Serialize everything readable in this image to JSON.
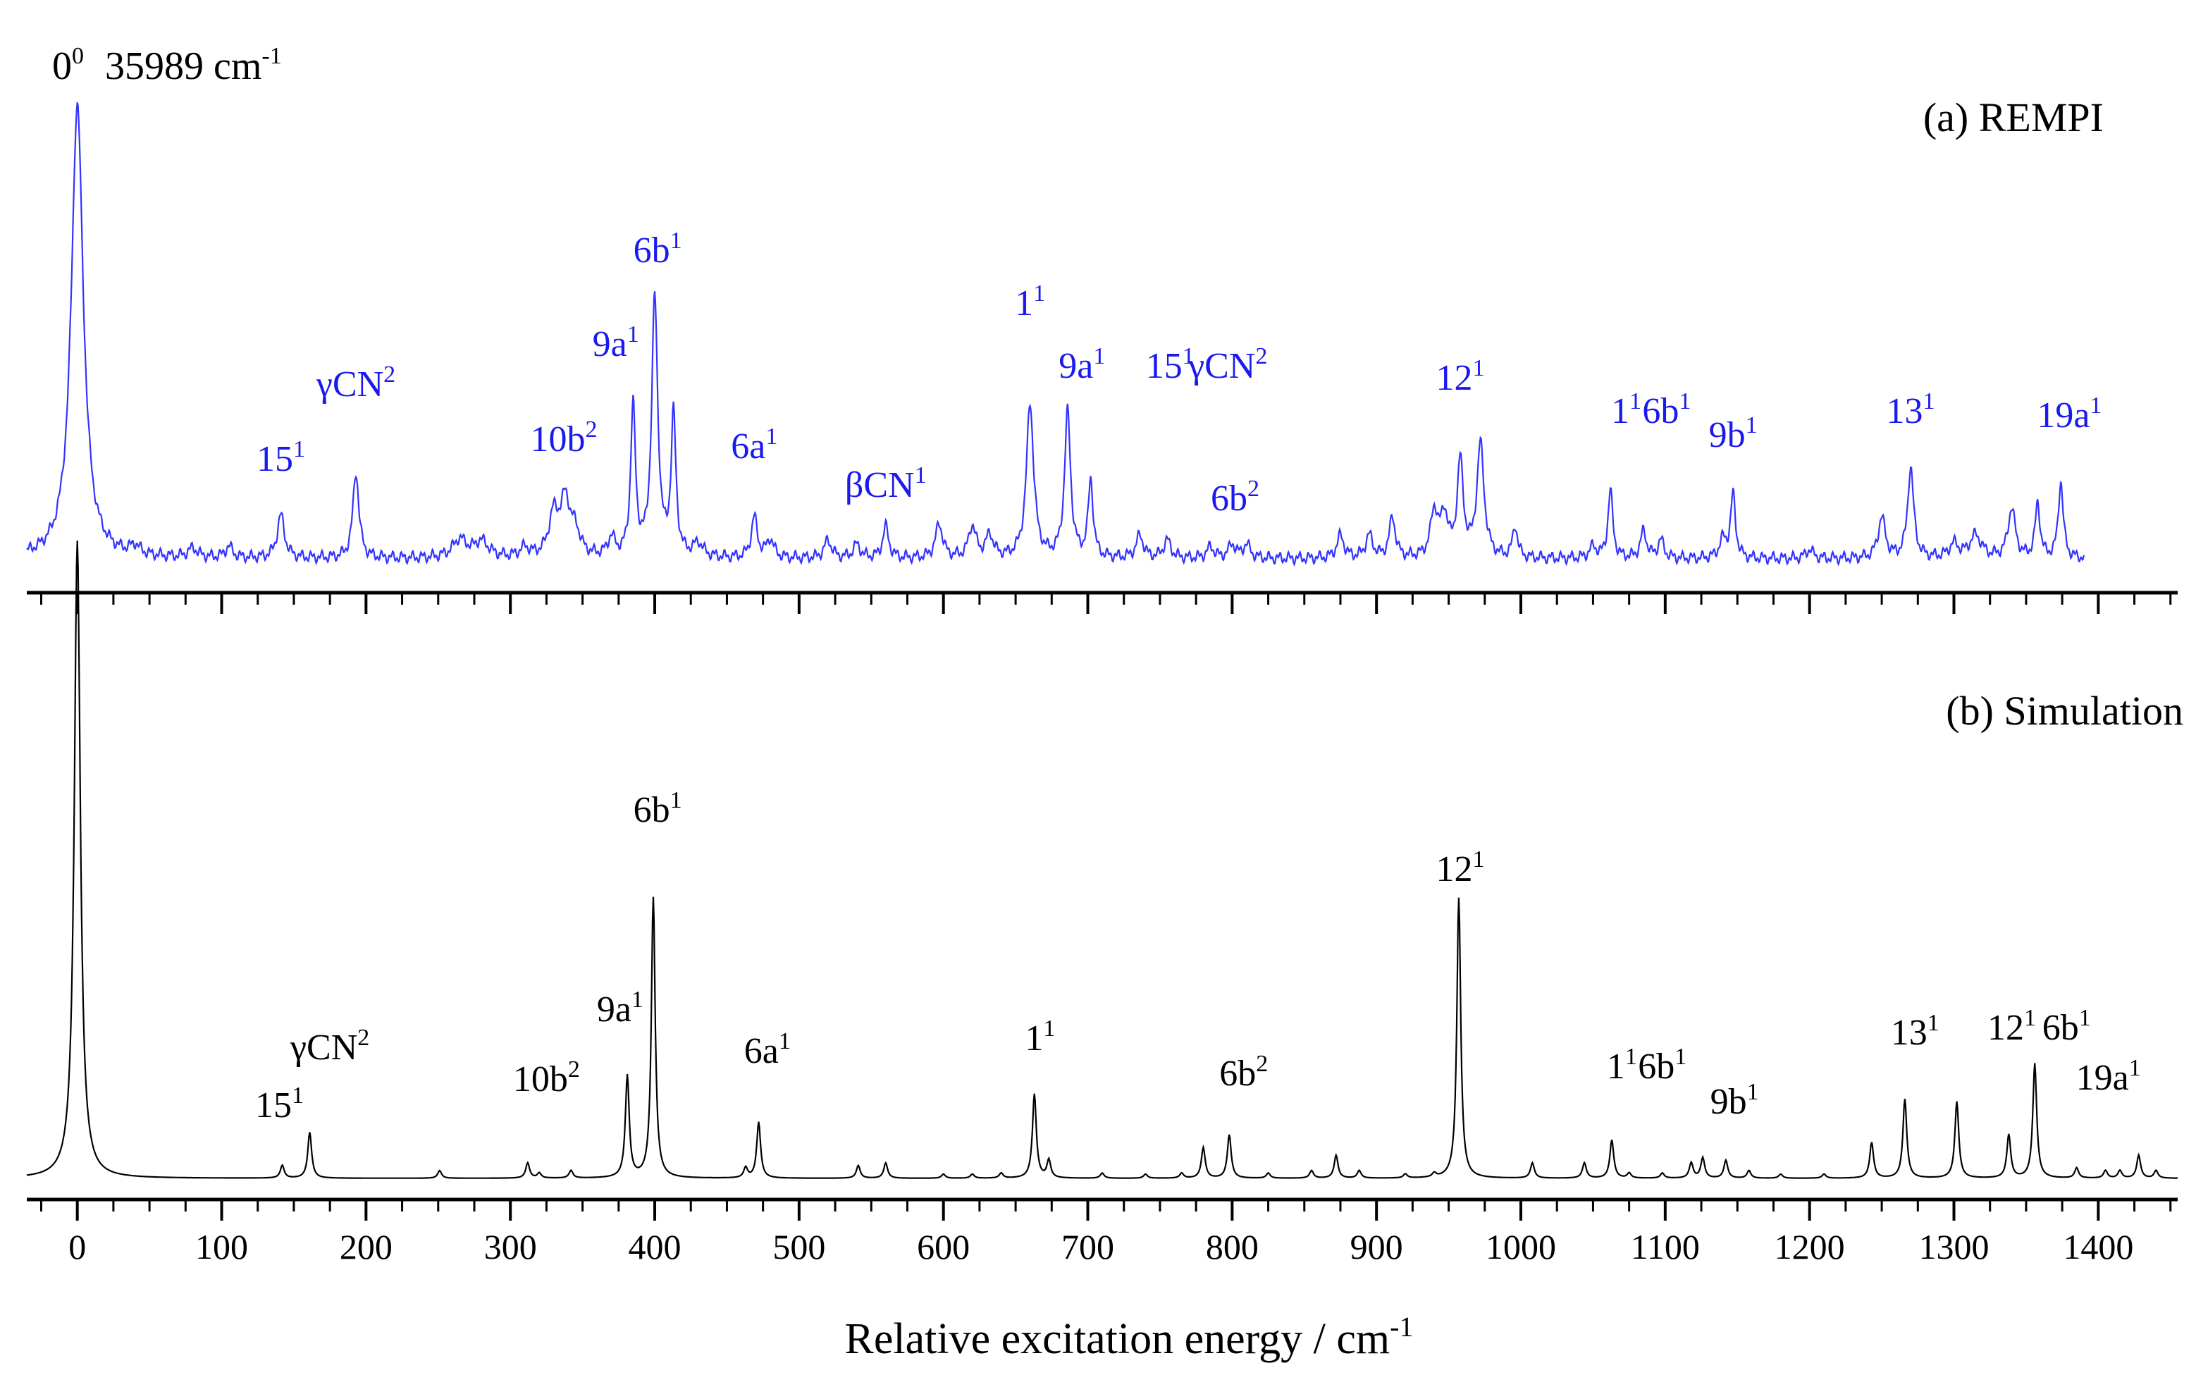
{
  "chart_data": {
    "type": "line",
    "xlabel": "Relative excitation energy / cm-1",
    "xlim": [
      -35,
      1455
    ],
    "xticks": [
      0,
      100,
      200,
      300,
      400,
      500,
      600,
      700,
      800,
      900,
      1000,
      1100,
      1200,
      1300,
      1400
    ],
    "xtick_labels": [
      "0",
      "100",
      "200",
      "300",
      "400",
      "500",
      "600",
      "700",
      "800",
      "900",
      "1000",
      "1100",
      "1200",
      "1300",
      "1400"
    ],
    "origin_annotation": {
      "base": "0",
      "sup": "0",
      "value": "35989",
      "unit": "cm",
      "unit_sup": "-1"
    },
    "panels": [
      {
        "id": "a",
        "title": "(a) REMPI",
        "color": "#3333ff",
        "label_color": "#1a1aee",
        "baseline": 0.02,
        "peak_width": 3.2,
        "peaks": [
          [
            0,
            1.0,
            5
          ],
          [
            40,
            0.02,
            4
          ],
          [
            80,
            0.02,
            4
          ],
          [
            105,
            0.025,
            3
          ],
          [
            141,
            0.095,
            3
          ],
          [
            193,
            0.19,
            2.5
          ],
          [
            265,
            0.04,
            6
          ],
          [
            280,
            0.035,
            6
          ],
          [
            310,
            0.02,
            4
          ],
          [
            330,
            0.09,
            4
          ],
          [
            338,
            0.12,
            4
          ],
          [
            345,
            0.05,
            4
          ],
          [
            370,
            0.04,
            3
          ],
          [
            385,
            0.33,
            2
          ],
          [
            400,
            0.57,
            2.5
          ],
          [
            413,
            0.31,
            2
          ],
          [
            430,
            0.03,
            4
          ],
          [
            469,
            0.09,
            2.5
          ],
          [
            480,
            0.04,
            3
          ],
          [
            520,
            0.04,
            3
          ],
          [
            540,
            0.03,
            3
          ],
          [
            560,
            0.07,
            2.5
          ],
          [
            597,
            0.075,
            3
          ],
          [
            620,
            0.07,
            3
          ],
          [
            632,
            0.05,
            3
          ],
          [
            660,
            0.34,
            3
          ],
          [
            686,
            0.32,
            2.5
          ],
          [
            702,
            0.17,
            2
          ],
          [
            736,
            0.05,
            3
          ],
          [
            755,
            0.04,
            3
          ],
          [
            785,
            0.025,
            3
          ],
          [
            800,
            0.03,
            3
          ],
          [
            810,
            0.03,
            3
          ],
          [
            875,
            0.05,
            3
          ],
          [
            895,
            0.05,
            3
          ],
          [
            911,
            0.09,
            2.5
          ],
          [
            940,
            0.1,
            3
          ],
          [
            947,
            0.09,
            3
          ],
          [
            958,
            0.21,
            2.5
          ],
          [
            972,
            0.25,
            3
          ],
          [
            996,
            0.07,
            2
          ],
          [
            1050,
            0.025,
            3
          ],
          [
            1062,
            0.15,
            2
          ],
          [
            1085,
            0.06,
            2.5
          ],
          [
            1097,
            0.04,
            2.5
          ],
          [
            1140,
            0.04,
            3
          ],
          [
            1147,
            0.14,
            2
          ],
          [
            1200,
            0.02,
            3
          ],
          [
            1250,
            0.09,
            3
          ],
          [
            1270,
            0.2,
            2.5
          ],
          [
            1300,
            0.03,
            4
          ],
          [
            1315,
            0.05,
            5
          ],
          [
            1340,
            0.11,
            3
          ],
          [
            1358,
            0.12,
            2
          ],
          [
            1374,
            0.17,
            2
          ]
        ],
        "xrange": [
          -35,
          1390
        ],
        "labels": [
          {
            "base": "15",
            "sup": "1",
            "x": 141
          },
          {
            "base": "γCN",
            "sup": "2",
            "x": 193
          },
          {
            "base": "10b",
            "sup": "2",
            "x": 337
          },
          {
            "base": "9a",
            "sup": "1",
            "x": 373
          },
          {
            "base": "6b",
            "sup": "1",
            "x": 402
          },
          {
            "base": "6a",
            "sup": "1",
            "x": 469
          },
          {
            "base": "βCN",
            "sup": "1",
            "x": 560
          },
          {
            "base": "1",
            "sup": "1",
            "x": 660
          },
          {
            "base": "9a",
            "sup": "1",
            "x": 696
          },
          {
            "base": "15",
            "sup": "1",
            "x": 757
          },
          {
            "base": "γCN",
            "sup": "2",
            "x": 797
          },
          {
            "base": "6b",
            "sup": "2",
            "x": 802
          },
          {
            "base": "12",
            "sup": "1",
            "x": 958
          },
          {
            "base": "1",
            "sup": "1",
            "x": 1073
          },
          {
            "base": "6b",
            "sup": "1",
            "x": 1101
          },
          {
            "base": "9b",
            "sup": "1",
            "x": 1147
          },
          {
            "base": "13",
            "sup": "1",
            "x": 1270
          },
          {
            "base": "19a",
            "sup": "1",
            "x": 1380
          }
        ]
      },
      {
        "id": "b",
        "title": "(b) Simulation",
        "color": "#000000",
        "label_color": "#000000",
        "baseline": 0.0,
        "peak_width": 1.6,
        "peaks": [
          [
            0,
            1.25,
            2.5
          ],
          [
            142,
            0.025,
            1.6
          ],
          [
            161,
            0.09,
            1.6
          ],
          [
            251,
            0.015,
            1.6
          ],
          [
            312,
            0.03,
            1.6
          ],
          [
            320,
            0.01,
            1.6
          ],
          [
            342,
            0.015,
            1.6
          ],
          [
            381,
            0.2,
            1.6
          ],
          [
            399,
            0.55,
            1.6
          ],
          [
            463,
            0.02,
            1.6
          ],
          [
            472,
            0.11,
            1.6
          ],
          [
            541,
            0.025,
            1.6
          ],
          [
            560,
            0.03,
            1.6
          ],
          [
            600,
            0.008,
            1.6
          ],
          [
            620,
            0.008,
            1.6
          ],
          [
            640,
            0.01,
            1.6
          ],
          [
            663,
            0.165,
            1.6
          ],
          [
            673,
            0.035,
            1.6
          ],
          [
            710,
            0.01,
            1.6
          ],
          [
            740,
            0.008,
            1.6
          ],
          [
            765,
            0.01,
            1.6
          ],
          [
            780,
            0.06,
            1.6
          ],
          [
            798,
            0.085,
            1.6
          ],
          [
            825,
            0.01,
            1.6
          ],
          [
            855,
            0.015,
            1.6
          ],
          [
            872,
            0.045,
            1.6
          ],
          [
            888,
            0.015,
            1.6
          ],
          [
            920,
            0.008,
            1.6
          ],
          [
            940,
            0.008,
            1.6
          ],
          [
            957,
            0.55,
            1.6
          ],
          [
            1008,
            0.03,
            1.6
          ],
          [
            1044,
            0.03,
            1.6
          ],
          [
            1063,
            0.075,
            1.6
          ],
          [
            1075,
            0.01,
            1.6
          ],
          [
            1098,
            0.01,
            1.6
          ],
          [
            1118,
            0.03,
            1.6
          ],
          [
            1126,
            0.04,
            1.6
          ],
          [
            1142,
            0.035,
            1.6
          ],
          [
            1158,
            0.015,
            1.6
          ],
          [
            1180,
            0.008,
            1.6
          ],
          [
            1210,
            0.008,
            1.6
          ],
          [
            1243,
            0.07,
            1.6
          ],
          [
            1266,
            0.155,
            1.6
          ],
          [
            1302,
            0.15,
            1.6
          ],
          [
            1338,
            0.085,
            1.6
          ],
          [
            1356,
            0.225,
            1.6
          ],
          [
            1385,
            0.02,
            1.6
          ],
          [
            1405,
            0.015,
            1.6
          ],
          [
            1415,
            0.015,
            1.6
          ],
          [
            1428,
            0.045,
            1.6
          ],
          [
            1440,
            0.015,
            1.6
          ]
        ],
        "xrange": [
          -35,
          1455
        ],
        "labels": [
          {
            "base": "15",
            "sup": "1",
            "x": 140
          },
          {
            "base": "γCN",
            "sup": "2",
            "x": 175
          },
          {
            "base": "10b",
            "sup": "2",
            "x": 325
          },
          {
            "base": "9a",
            "sup": "1",
            "x": 376
          },
          {
            "base": "6b",
            "sup": "1",
            "x": 402
          },
          {
            "base": "6a",
            "sup": "1",
            "x": 478
          },
          {
            "base": "1",
            "sup": "1",
            "x": 667
          },
          {
            "base": "6b",
            "sup": "2",
            "x": 808
          },
          {
            "base": "12",
            "sup": "1",
            "x": 958
          },
          {
            "base": "1",
            "sup": "1",
            "x": 1070
          },
          {
            "base": "6b",
            "sup": "1",
            "x": 1098
          },
          {
            "base": "9b",
            "sup": "1",
            "x": 1148
          },
          {
            "base": "13",
            "sup": "1",
            "x": 1273
          },
          {
            "base": "12",
            "sup": "1",
            "x": 1340
          },
          {
            "base": "6b",
            "sup": "1",
            "x": 1378
          },
          {
            "base": "19a",
            "sup": "1",
            "x": 1407
          }
        ]
      }
    ]
  }
}
